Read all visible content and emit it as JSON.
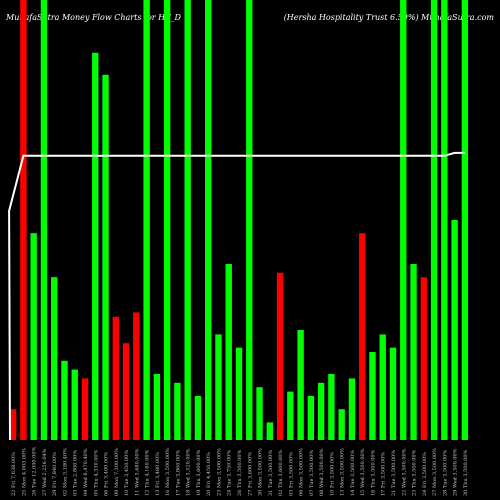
{
  "chart_data": {
    "type": "bar",
    "title_left": "MunafaSutra  Money Flow  Charts for HT_D",
    "title_right": "(Hersha  Hospitality Trust 6.50%) MunafaSutra.com",
    "categories": [
      "22 Fri Nov 2024",
      "25 Mon Nov 2024",
      "26 Tue Nov 2024",
      "27 Wed Nov 2024",
      "29 Fri Nov 2024",
      "02 Mon Dec 2024",
      "03 Tue Dec 2024",
      "04 Wed Dec 2024",
      "05 Thu Dec 2024",
      "06 Fri Dec 2024",
      "09 Mon Dec 2024",
      "10 Tue Dec 2024",
      "11 Wed Dec 2024",
      "12 Thu Dec 2024",
      "13 Fri Dec 2024",
      "16 Mon Dec 2024",
      "17 Tue Dec 2024",
      "18 Wed Dec 2024",
      "19 Thu Dec 2024",
      "20 Fri Dec 2024",
      "23 Mon Dec 2024",
      "24 Tue Dec 2024",
      "26 Thu Dec 2024",
      "27 Fri Dec 2024",
      "30 Mon Dec 2024",
      "31 Tue Dec 2024",
      "02 Thu Jan 2025",
      "03 Fri Jan 2025",
      "06 Mon Jan 2025",
      "07 Tue Jan 2025",
      "08 Wed Jan 2025",
      "10 Fri Jan 2025",
      "13 Mon Jan 2025",
      "14 Tue Jan 2025",
      "15 Wed Jan 2025",
      "16 Thu Jan 2025",
      "17 Fri Jan 2025",
      "21 Tue Jan 2025",
      "22 Wed Jan 2025",
      "23 Thu Jan 2025",
      "24 Fri Jan 2025",
      "27 Mon Jan 2025",
      "28 Tue Jan 2025",
      "29 Wed Jan 2025",
      "30 Thu Jan 2025"
    ],
    "x_tick_labels": [
      "22 Fri 7,638.00%",
      "25 Mon 4,003.00%",
      "26 Tue 12,000.00%",
      "27 Wed 2,256.04%",
      "29 Fri 7,840.00%",
      "02 Mon 3,180.40%",
      "03 Tue 2,800.00%",
      "04 Wed 6,470.40%",
      "05 Thu 4,330.00%",
      "06 Fri 3,400.00%",
      "09 Mon 7,300.00%",
      "10 Tue 3,450.00%",
      "11 Wed 3,680.00%",
      "12 Thu 4,160.00%",
      "13 Fri 3,480.00%",
      "16 Mon 3,500.00%",
      "17 Tue 3,860.00%",
      "18 Wed 3,520.00%",
      "19 Thu 3,600.00%",
      "20 Fri 4,450.00%",
      "23 Mon 3,500.00%",
      "24 Tue 3,750.00%",
      "26 Thu 3,500.00%",
      "27 Fri 3,600.00%",
      "30 Mon 3,500.00%",
      "31 Tue 3,500.00%",
      "02 Thu 3,600.00%",
      "03 Fri 3,500.00%",
      "06 Mon 3,500.00%",
      "07 Tue 3,500.00%",
      "08 Wed 3,500.00%",
      "10 Fri 3,500.00%",
      "13 Mon 3,500.00%",
      "14 Tue 3,500.00%",
      "15 Wed 3,500.00%",
      "16 Thu 3,500.00%",
      "17 Fri 3,500.00%",
      "21 Tue 3,500.00%",
      "22 Wed 3,500.00%",
      "23 Thu 3,500.00%",
      "24 Fri 3,500.00%",
      "27 Mon 3,500.00%",
      "28 Tue 3,500.00%",
      "29 Wed 3,500.00%",
      "30 Thu 3,500.00%"
    ],
    "values": [
      7,
      100,
      47,
      100,
      37,
      18,
      16,
      14,
      88,
      83,
      28,
      22,
      29,
      100,
      15,
      100,
      13,
      100,
      10,
      100,
      24,
      40,
      21,
      100,
      12,
      4,
      38,
      11,
      25,
      10,
      13,
      15,
      7,
      14,
      47,
      20,
      24,
      21,
      100,
      40,
      37,
      100,
      100,
      50,
      100
    ],
    "colors": [
      "red",
      "red",
      "green",
      "green",
      "green",
      "green",
      "green",
      "red",
      "green",
      "green",
      "red",
      "red",
      "red",
      "green",
      "green",
      "green",
      "green",
      "green",
      "green",
      "green",
      "green",
      "green",
      "green",
      "green",
      "green",
      "green",
      "red",
      "green",
      "green",
      "green",
      "green",
      "green",
      "green",
      "green",
      "red",
      "green",
      "green",
      "green",
      "green",
      "green",
      "red",
      "green",
      "green",
      "green",
      "green"
    ],
    "price_line": [
      79,
      98,
      98,
      98,
      98,
      98,
      98,
      98,
      98,
      98,
      98,
      98,
      98,
      98,
      98,
      98,
      98,
      98,
      98,
      98,
      98,
      98,
      98,
      98,
      98,
      98,
      98,
      98,
      98,
      98,
      98,
      98,
      98,
      98,
      98,
      98,
      98,
      98,
      98,
      98,
      98,
      98,
      98,
      99,
      99
    ],
    "ylim": [
      0,
      100
    ],
    "series_colors": {
      "up": "#00ff00",
      "down": "#ff0000",
      "line": "#ffffff"
    },
    "grid": false
  }
}
